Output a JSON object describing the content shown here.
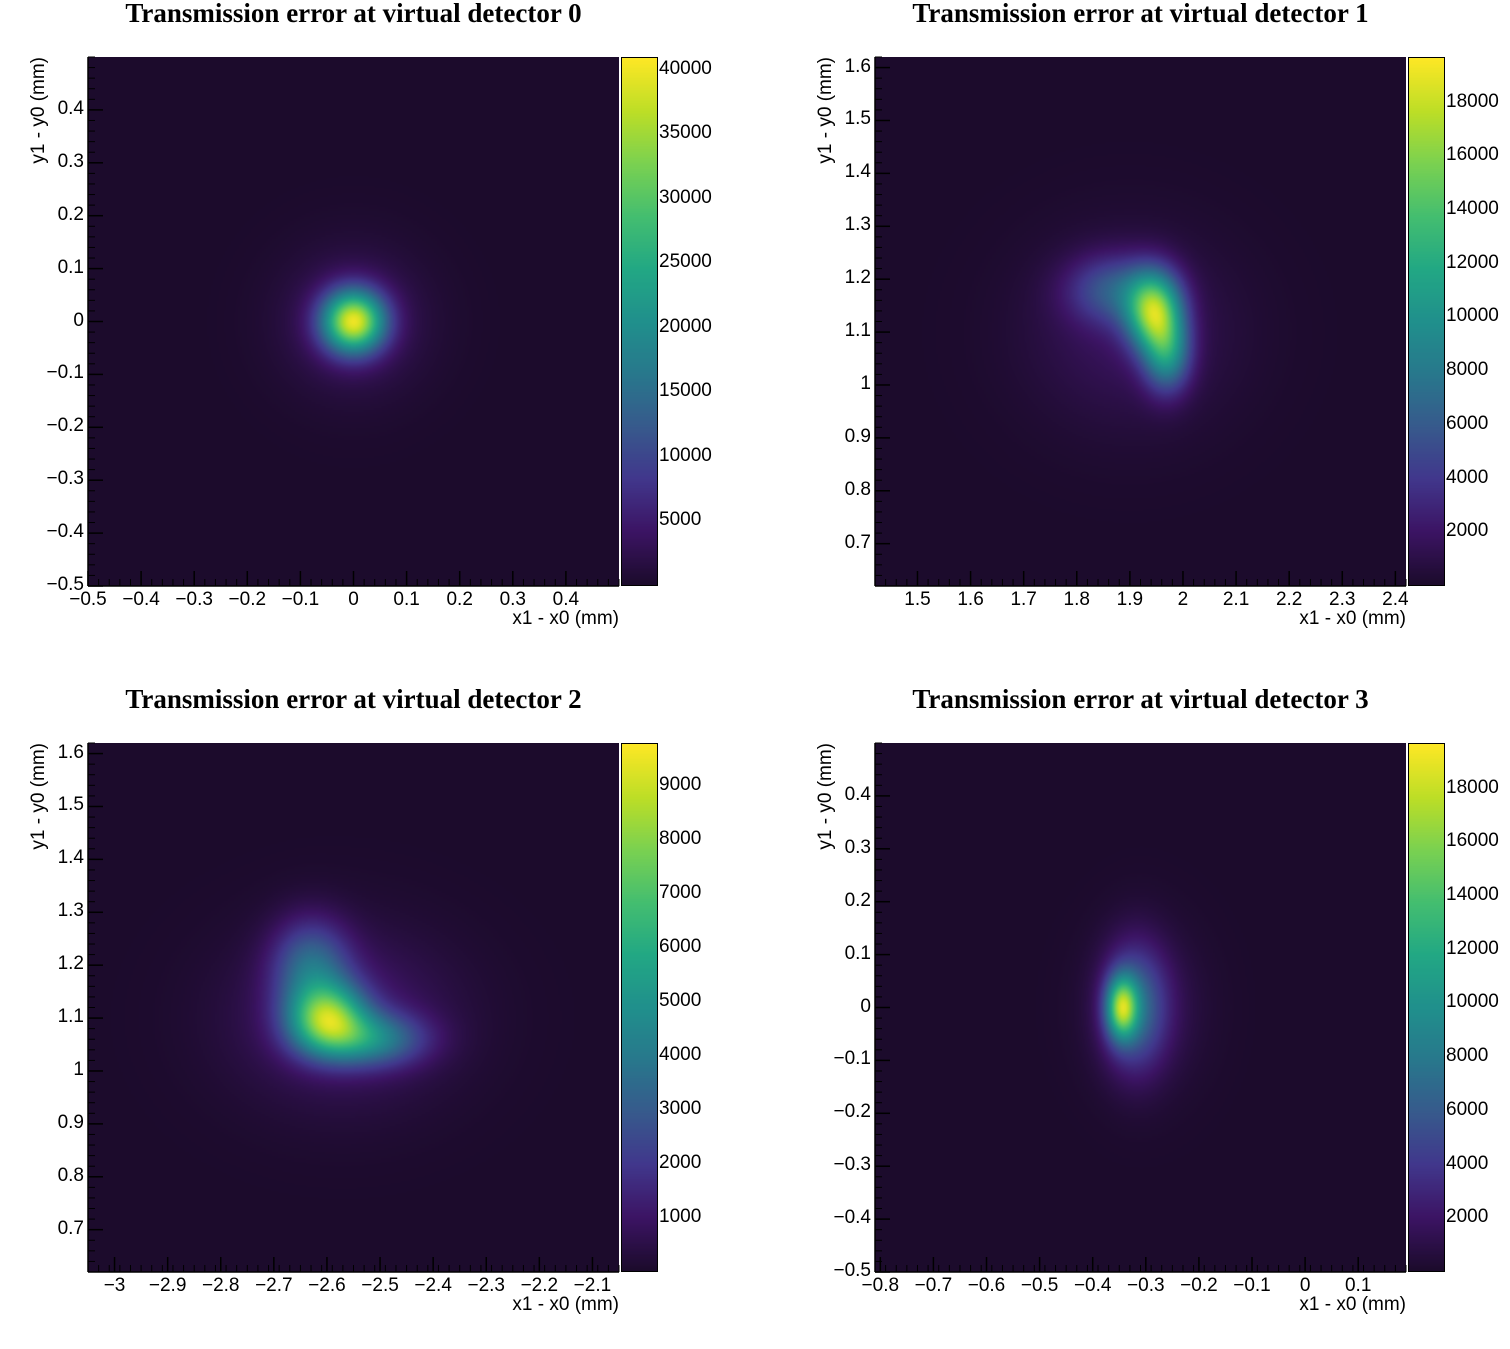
{
  "chart_data": [
    {
      "type": "heatmap",
      "title": "Transmission error at virtual detector 0",
      "xlabel": "x1 - x0 (mm)",
      "ylabel": "y1 - y0 (mm)",
      "xlim": [
        -0.5,
        0.5
      ],
      "ylim": [
        -0.5,
        0.5
      ],
      "xticks": [
        -0.5,
        -0.4,
        -0.3,
        -0.2,
        -0.1,
        0,
        0.1,
        0.2,
        0.3,
        0.4
      ],
      "xtick_labels": [
        "−0.5",
        "−0.4",
        "−0.3",
        "−0.2",
        "−0.1",
        "0",
        "0.1",
        "0.2",
        "0.3",
        "0.4"
      ],
      "yticks": [
        -0.5,
        -0.4,
        -0.3,
        -0.2,
        -0.1,
        0,
        0.1,
        0.2,
        0.3,
        0.4
      ],
      "ytick_labels": [
        "−0.5",
        "−0.4",
        "−0.3",
        "−0.2",
        "−0.1",
        "0",
        "0.1",
        "0.2",
        "0.3",
        "0.4"
      ],
      "zlim": [
        0,
        41000
      ],
      "zticks": [
        5000,
        10000,
        15000,
        20000,
        25000,
        30000,
        35000,
        40000
      ],
      "ztick_labels": [
        "5000",
        "10000",
        "15000",
        "20000",
        "25000",
        "30000",
        "35000",
        "40000"
      ],
      "colormap": "viridis",
      "peak_value": 40000,
      "blobs": [
        {
          "x": 0.0,
          "y": 0.0,
          "sx": 0.04,
          "sy": 0.04,
          "amp": 1.0
        },
        {
          "x": 0.0,
          "y": 0.0,
          "sx": 0.09,
          "sy": 0.09,
          "amp": 0.12
        }
      ]
    },
    {
      "type": "heatmap",
      "title": "Transmission error at virtual detector 1",
      "xlabel": "x1 - x0 (mm)",
      "ylabel": "y1 - y0 (mm)",
      "xlim": [
        1.42,
        2.42
      ],
      "ylim": [
        0.62,
        1.62
      ],
      "xticks": [
        1.5,
        1.6,
        1.7,
        1.8,
        1.9,
        2,
        2.1,
        2.2,
        2.3,
        2.4
      ],
      "xtick_labels": [
        "1.5",
        "1.6",
        "1.7",
        "1.8",
        "1.9",
        "2",
        "2.1",
        "2.2",
        "2.3",
        "2.4"
      ],
      "yticks": [
        0.7,
        0.8,
        0.9,
        1,
        1.1,
        1.2,
        1.3,
        1.4,
        1.5,
        1.6
      ],
      "ytick_labels": [
        "0.7",
        "0.8",
        "0.9",
        "1",
        "1.1",
        "1.2",
        "1.3",
        "1.4",
        "1.5",
        "1.6"
      ],
      "zlim": [
        0,
        19700
      ],
      "zticks": [
        2000,
        4000,
        6000,
        8000,
        10000,
        12000,
        14000,
        16000,
        18000
      ],
      "ztick_labels": [
        "2000",
        "4000",
        "6000",
        "8000",
        "10000",
        "12000",
        "14000",
        "16000",
        "18000"
      ],
      "colormap": "viridis",
      "peak_value": 19000,
      "blobs": [
        {
          "x": 1.945,
          "y": 1.14,
          "sx": 0.035,
          "sy": 0.05,
          "amp": 1.0
        },
        {
          "x": 1.97,
          "y": 1.06,
          "sx": 0.03,
          "sy": 0.05,
          "amp": 0.6
        },
        {
          "x": 1.87,
          "y": 1.18,
          "sx": 0.06,
          "sy": 0.045,
          "amp": 0.35
        },
        {
          "x": 1.9,
          "y": 1.1,
          "sx": 0.13,
          "sy": 0.12,
          "amp": 0.12
        }
      ]
    },
    {
      "type": "heatmap",
      "title": "Transmission error at virtual detector 2",
      "xlabel": "x1 - x0 (mm)",
      "ylabel": "y1 - y0 (mm)",
      "xlim": [
        -3.05,
        -2.05
      ],
      "ylim": [
        0.62,
        1.62
      ],
      "xticks": [
        -3,
        -2.9,
        -2.8,
        -2.7,
        -2.6,
        -2.5,
        -2.4,
        -2.3,
        -2.2,
        -2.1
      ],
      "xtick_labels": [
        "−3",
        "−2.9",
        "−2.8",
        "−2.7",
        "−2.6",
        "−2.5",
        "−2.4",
        "−2.3",
        "−2.2",
        "−2.1"
      ],
      "yticks": [
        0.7,
        0.8,
        0.9,
        1,
        1.1,
        1.2,
        1.3,
        1.4,
        1.5,
        1.6
      ],
      "ytick_labels": [
        "0.7",
        "0.8",
        "0.9",
        "1",
        "1.1",
        "1.2",
        "1.3",
        "1.4",
        "1.5",
        "1.6"
      ],
      "zlim": [
        0,
        9800
      ],
      "zticks": [
        1000,
        2000,
        3000,
        4000,
        5000,
        6000,
        7000,
        8000,
        9000
      ],
      "ztick_labels": [
        "1000",
        "2000",
        "3000",
        "4000",
        "5000",
        "6000",
        "7000",
        "8000",
        "9000"
      ],
      "colormap": "viridis",
      "peak_value": 9500,
      "blobs": [
        {
          "x": -2.6,
          "y": 1.1,
          "sx": 0.05,
          "sy": 0.045,
          "amp": 1.0
        },
        {
          "x": -2.52,
          "y": 1.06,
          "sx": 0.07,
          "sy": 0.035,
          "amp": 0.55
        },
        {
          "x": -2.63,
          "y": 1.2,
          "sx": 0.05,
          "sy": 0.06,
          "amp": 0.45
        },
        {
          "x": -2.57,
          "y": 1.1,
          "sx": 0.14,
          "sy": 0.11,
          "amp": 0.18
        }
      ]
    },
    {
      "type": "heatmap",
      "title": "Transmission error at virtual detector 3",
      "xlabel": "x1 - x0 (mm)",
      "ylabel": "y1 - y0 (mm)",
      "xlim": [
        -0.81,
        0.19
      ],
      "ylim": [
        -0.5,
        0.5
      ],
      "xticks": [
        -0.8,
        -0.7,
        -0.6,
        -0.5,
        -0.4,
        -0.3,
        -0.2,
        -0.1,
        0,
        0.1
      ],
      "xtick_labels": [
        "−0.8",
        "−0.7",
        "−0.6",
        "−0.5",
        "−0.4",
        "−0.3",
        "−0.2",
        "−0.1",
        "0",
        "0.1"
      ],
      "yticks": [
        -0.5,
        -0.4,
        -0.3,
        -0.2,
        -0.1,
        0,
        0.1,
        0.2,
        0.3,
        0.4
      ],
      "ytick_labels": [
        "−0.5",
        "−0.4",
        "−0.3",
        "−0.2",
        "−0.1",
        "0",
        "0.1",
        "0.2",
        "0.3",
        "0.4"
      ],
      "zlim": [
        0,
        19700
      ],
      "zticks": [
        2000,
        4000,
        6000,
        8000,
        10000,
        12000,
        14000,
        16000,
        18000
      ],
      "ztick_labels": [
        "2000",
        "4000",
        "6000",
        "8000",
        "10000",
        "12000",
        "14000",
        "16000",
        "18000"
      ],
      "colormap": "viridis",
      "peak_value": 19000,
      "blobs": [
        {
          "x": -0.345,
          "y": 0.0,
          "sx": 0.02,
          "sy": 0.04,
          "amp": 1.0
        },
        {
          "x": -0.32,
          "y": 0.0,
          "sx": 0.04,
          "sy": 0.08,
          "amp": 0.45
        },
        {
          "x": -0.3,
          "y": 0.0,
          "sx": 0.07,
          "sy": 0.1,
          "amp": 0.12
        }
      ]
    }
  ]
}
